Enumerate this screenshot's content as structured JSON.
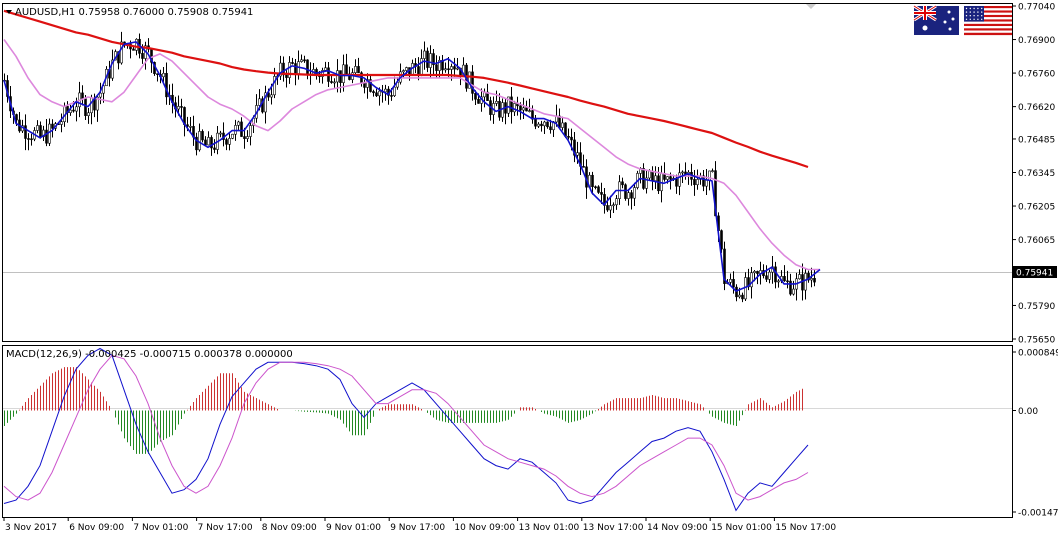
{
  "chart_data": [
    {
      "type": "candlestick",
      "title": "AUDUSD,H1  0.75958 0.76000 0.75908 0.75941",
      "ylim": [
        0.7565,
        0.7704
      ],
      "y_ticks": [
        "0.77040",
        "0.76900",
        "0.76760",
        "0.76620",
        "0.76485",
        "0.76345",
        "0.76205",
        "0.76065",
        "0.75941",
        "0.75790",
        "0.75650"
      ],
      "x_ticks": [
        "3 Nov 2017",
        "6 Nov 09:00",
        "7 Nov 01:00",
        "7 Nov 17:00",
        "8 Nov 09:00",
        "9 Nov 01:00",
        "9 Nov 17:00",
        "10 Nov 09:00",
        "13 Nov 01:00",
        "13 Nov 17:00",
        "14 Nov 09:00",
        "15 Nov 01:00",
        "15 Nov 17:00"
      ],
      "current_price": 0.75941,
      "current_price_label": "0.75941",
      "grid": false,
      "colors": {
        "up": "#000000",
        "down": "#000000",
        "ma_slow": "#dd1111",
        "ma_mid": "#dd88dd",
        "ma_fast": "#1111cc"
      },
      "series": [
        {
          "kind": "ma_slow",
          "x": [
            0,
            12,
            24,
            36,
            48,
            60,
            72,
            84,
            96,
            108,
            120,
            132,
            144,
            156,
            168,
            180,
            192,
            204,
            216,
            228,
            240,
            252,
            264,
            276,
            288,
            300,
            312,
            324,
            336,
            348,
            360,
            372,
            384,
            396,
            408,
            420,
            432,
            444,
            456,
            468,
            480,
            492,
            504,
            516,
            528,
            540,
            552,
            564,
            576,
            588,
            600,
            612,
            624,
            636,
            648,
            660,
            672,
            684,
            696,
            708,
            720,
            732,
            744,
            756,
            768,
            780,
            792,
            804
          ],
          "values": [
            0.7702,
            0.77005,
            0.7699,
            0.76975,
            0.7696,
            0.76945,
            0.7693,
            0.7692,
            0.76905,
            0.7689,
            0.7688,
            0.7687,
            0.76865,
            0.76855,
            0.76845,
            0.7683,
            0.7682,
            0.7681,
            0.768,
            0.76785,
            0.76775,
            0.76768,
            0.76762,
            0.76758,
            0.76756,
            0.76754,
            0.76752,
            0.76752,
            0.76752,
            0.76752,
            0.76752,
            0.76752,
            0.76752,
            0.76752,
            0.76752,
            0.76752,
            0.76752,
            0.76752,
            0.76748,
            0.76745,
            0.7674,
            0.7673,
            0.7672,
            0.76708,
            0.76696,
            0.76684,
            0.76672,
            0.7666,
            0.76645,
            0.76632,
            0.7662,
            0.76605,
            0.7659,
            0.7658,
            0.7657,
            0.7656,
            0.76548,
            0.76535,
            0.76522,
            0.7651,
            0.7649,
            0.7647,
            0.76452,
            0.76432,
            0.76415,
            0.764,
            0.76385,
            0.76368
          ]
        },
        {
          "kind": "ma_mid",
          "x": [
            0,
            12,
            24,
            36,
            48,
            60,
            72,
            84,
            96,
            108,
            120,
            132,
            144,
            156,
            168,
            180,
            192,
            204,
            216,
            228,
            240,
            252,
            264,
            276,
            288,
            300,
            312,
            324,
            336,
            348,
            360,
            372,
            384,
            396,
            408,
            420,
            432,
            444,
            456,
            468,
            480,
            492,
            504,
            516,
            528,
            540,
            552,
            564,
            576,
            588,
            600,
            612,
            624,
            636,
            648,
            660,
            672,
            684,
            696,
            708,
            720,
            732,
            744,
            756,
            768,
            780,
            792,
            804,
            816
          ],
          "values": [
            0.769,
            0.7683,
            0.7674,
            0.7667,
            0.7664,
            0.7662,
            0.7664,
            0.7666,
            0.7665,
            0.7664,
            0.7668,
            0.7675,
            0.7682,
            0.7684,
            0.7681,
            0.7676,
            0.7671,
            0.7666,
            0.7663,
            0.7661,
            0.7658,
            0.7654,
            0.7652,
            0.7656,
            0.7661,
            0.7664,
            0.7667,
            0.7669,
            0.767,
            0.7671,
            0.7672,
            0.7673,
            0.7674,
            0.7674,
            0.7674,
            0.7674,
            0.7674,
            0.7674,
            0.7674,
            0.7671,
            0.7668,
            0.7667,
            0.7665,
            0.7663,
            0.7661,
            0.7659,
            0.7658,
            0.7657,
            0.7653,
            0.7649,
            0.7645,
            0.7641,
            0.7638,
            0.7636,
            0.7635,
            0.7634,
            0.7633,
            0.7633,
            0.7633,
            0.7632,
            0.763,
            0.7625,
            0.7618,
            0.7611,
            0.7605,
            0.76,
            0.7596,
            0.7594,
            0.7594
          ]
        },
        {
          "kind": "ma_fast",
          "x": [
            0,
            12,
            24,
            36,
            48,
            60,
            72,
            84,
            96,
            108,
            120,
            132,
            144,
            156,
            168,
            180,
            192,
            204,
            216,
            228,
            240,
            252,
            264,
            276,
            288,
            300,
            312,
            324,
            336,
            348,
            360,
            372,
            384,
            396,
            408,
            420,
            432,
            444,
            456,
            468,
            480,
            492,
            504,
            516,
            528,
            540,
            552,
            564,
            576,
            588,
            600,
            612,
            624,
            636,
            648,
            660,
            672,
            684,
            696,
            708,
            720,
            732,
            744,
            756,
            768,
            780,
            792,
            804,
            816
          ],
          "values": [
            0.7673,
            0.7655,
            0.7652,
            0.7649,
            0.7652,
            0.7658,
            0.7664,
            0.7662,
            0.7668,
            0.768,
            0.7688,
            0.7689,
            0.7684,
            0.7675,
            0.7664,
            0.7655,
            0.7648,
            0.7645,
            0.7648,
            0.7652,
            0.7652,
            0.7659,
            0.7668,
            0.7676,
            0.7679,
            0.7678,
            0.7676,
            0.7677,
            0.7675,
            0.7675,
            0.7674,
            0.767,
            0.7667,
            0.7674,
            0.7678,
            0.7681,
            0.768,
            0.7682,
            0.7678,
            0.767,
            0.7664,
            0.766,
            0.7662,
            0.766,
            0.7657,
            0.7657,
            0.7655,
            0.7648,
            0.7638,
            0.7626,
            0.7621,
            0.7627,
            0.7627,
            0.7632,
            0.7631,
            0.763,
            0.7632,
            0.7634,
            0.7632,
            0.7631,
            0.759,
            0.7585,
            0.7587,
            0.7592,
            0.7595,
            0.7588,
            0.7588,
            0.759,
            0.7594
          ]
        }
      ],
      "candles_generated": true
    },
    {
      "type": "bar",
      "title": "MACD(12,26,9) -0.000425 -0.000715 0.000378 0.000000",
      "ylim": [
        -0.001473,
        0.000849
      ],
      "y_ticks": [
        "0.000849",
        "0.00",
        "-0.001473"
      ],
      "hist_colors": {
        "positive": "#cc3333",
        "negative": "#228822"
      },
      "series": [
        {
          "kind": "macd_line",
          "color": "#1111cc",
          "x": [
            0,
            12,
            24,
            36,
            48,
            60,
            72,
            84,
            96,
            108,
            120,
            132,
            144,
            156,
            168,
            180,
            192,
            204,
            216,
            228,
            240,
            252,
            264,
            276,
            288,
            300,
            312,
            324,
            336,
            348,
            360,
            372,
            384,
            396,
            408,
            420,
            432,
            444,
            456,
            468,
            480,
            492,
            504,
            516,
            528,
            540,
            552,
            564,
            576,
            588,
            600,
            612,
            624,
            636,
            648,
            660,
            672,
            684,
            696,
            708,
            720,
            732,
            744,
            756,
            768,
            780,
            792,
            804
          ],
          "values": [
            -0.00135,
            -0.0013,
            -0.0011,
            -0.0008,
            -0.0003,
            0.0002,
            0.0006,
            0.0008,
            0.0009,
            0.0008,
            0.0003,
            -0.0002,
            -0.0006,
            -0.0009,
            -0.0012,
            -0.00115,
            -0.001,
            -0.0007,
            -0.0002,
            0.0002,
            0.0004,
            0.0006,
            0.0007,
            0.0007,
            0.0007,
            0.00068,
            0.00065,
            0.0006,
            0.00045,
            0.0001,
            -0.0001,
            0.0001,
            0.0002,
            0.0003,
            0.0004,
            0.0003,
            0.0001,
            -0.0001,
            -0.0003,
            -0.0005,
            -0.0007,
            -0.0008,
            -0.00085,
            -0.0007,
            -0.00075,
            -0.0009,
            -0.00105,
            -0.0013,
            -0.00135,
            -0.0013,
            -0.0011,
            -0.0009,
            -0.00075,
            -0.0006,
            -0.00045,
            -0.0004,
            -0.0003,
            -0.00025,
            -0.0003,
            -0.0006,
            -0.001,
            -0.00145,
            -0.0012,
            -0.00105,
            -0.0011,
            -0.0009,
            -0.0007,
            -0.0005
          ]
        },
        {
          "kind": "signal_line",
          "color": "#cc55cc",
          "x": [
            0,
            12,
            24,
            36,
            48,
            60,
            72,
            84,
            96,
            108,
            120,
            132,
            144,
            156,
            168,
            180,
            192,
            204,
            216,
            228,
            240,
            252,
            264,
            276,
            288,
            300,
            312,
            324,
            336,
            348,
            360,
            372,
            384,
            396,
            408,
            420,
            432,
            444,
            456,
            468,
            480,
            492,
            504,
            516,
            528,
            540,
            552,
            564,
            576,
            588,
            600,
            612,
            624,
            636,
            648,
            660,
            672,
            684,
            696,
            708,
            720,
            732,
            744,
            756,
            768,
            780,
            792,
            804
          ],
          "values": [
            -0.0011,
            -0.00125,
            -0.0013,
            -0.0012,
            -0.0009,
            -0.0005,
            -0.0001,
            0.0003,
            0.0006,
            0.0008,
            0.00075,
            0.0005,
            0.0001,
            -0.0004,
            -0.0008,
            -0.0011,
            -0.0012,
            -0.0011,
            -0.0008,
            -0.0004,
            0.0001,
            0.0004,
            0.0006,
            0.0007,
            0.0007,
            0.0007,
            0.00068,
            0.00065,
            0.0006,
            0.0005,
            0.0003,
            0.0001,
            0.0001,
            0.0002,
            0.0003,
            0.0003,
            0.00025,
            0.0001,
            -0.0001,
            -0.0003,
            -0.0005,
            -0.0006,
            -0.0007,
            -0.00075,
            -0.0008,
            -0.00085,
            -0.00095,
            -0.0011,
            -0.0012,
            -0.00125,
            -0.0012,
            -0.0011,
            -0.00095,
            -0.0008,
            -0.0007,
            -0.0006,
            -0.0005,
            -0.0004,
            -0.0004,
            -0.0005,
            -0.0008,
            -0.0012,
            -0.0013,
            -0.00125,
            -0.00115,
            -0.00105,
            -0.001,
            -0.0009
          ]
        }
      ]
    }
  ]
}
